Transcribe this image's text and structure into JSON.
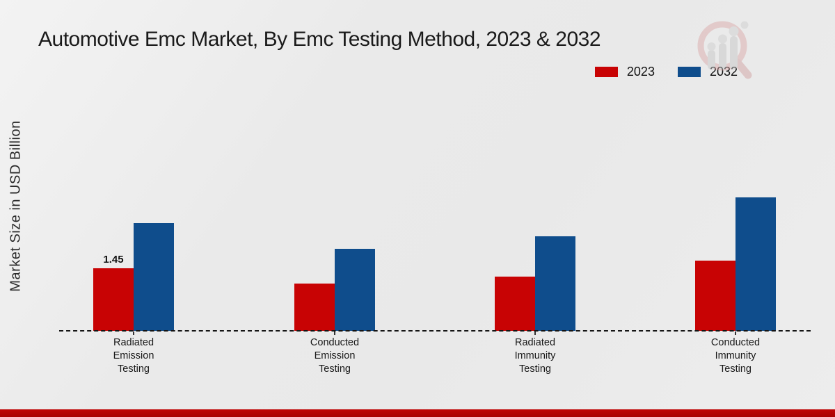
{
  "header": {
    "title": "Automotive Emc Market, By Emc Testing Method, 2023 & 2032"
  },
  "y_axis": {
    "label": "Market Size in USD Billion"
  },
  "legend": {
    "position": "top-right",
    "items": [
      {
        "label": "2023",
        "color": "#c80304"
      },
      {
        "label": "2032",
        "color": "#0f4d8c"
      }
    ]
  },
  "colors": {
    "series_2023": "#c80304",
    "series_2032": "#0f4d8c",
    "background": "#ebebeb",
    "baseline": "#151515",
    "bottom_strip": "#b00303",
    "text": "#1a1a1a"
  },
  "chart_data": {
    "type": "bar",
    "categories": [
      "Radiated Emission Testing",
      "Conducted Emission Testing",
      "Radiated Immunity Testing",
      "Conducted Immunity Testing"
    ],
    "series": [
      {
        "name": "2023",
        "color": "#c80304",
        "values": [
          1.45,
          1.1,
          1.25,
          1.63
        ]
      },
      {
        "name": "2032",
        "color": "#0f4d8c",
        "values": [
          2.5,
          1.9,
          2.2,
          3.1
        ]
      }
    ],
    "title": "Automotive Emc Market, By Emc Testing Method, 2023 & 2032",
    "xlabel": "",
    "ylabel": "Market Size in USD Billion",
    "ylim": [
      0,
      3.5
    ],
    "grid": false,
    "axis_style": "dashed-baseline-only",
    "annotations": [
      {
        "category_index": 0,
        "series": "2023",
        "text": "1.45"
      }
    ],
    "legend_position": "top-right"
  },
  "watermark": {
    "icon": "magnifier-growth-chart-logo"
  }
}
